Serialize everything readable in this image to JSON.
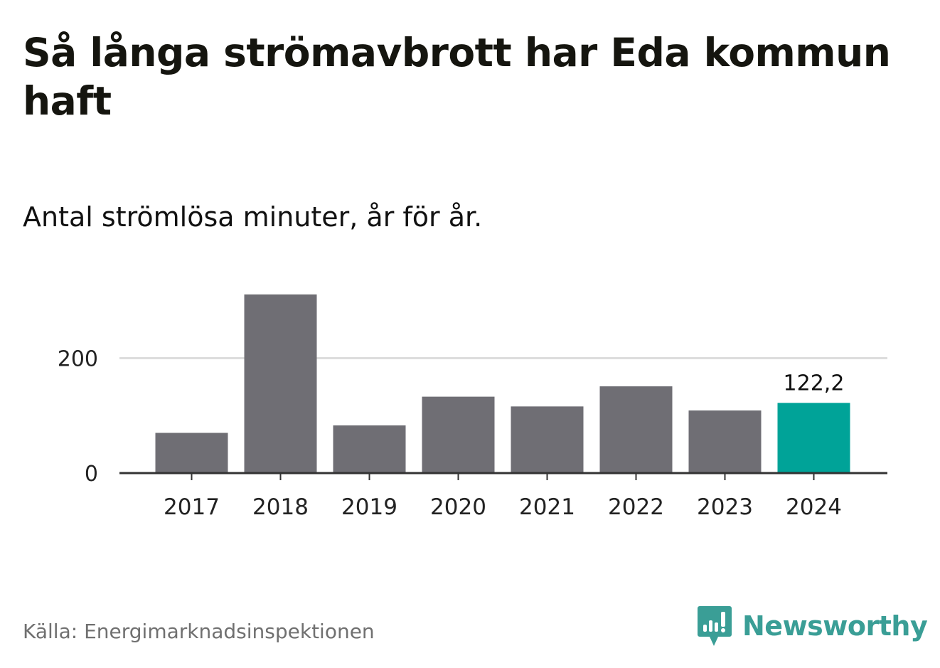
{
  "title": "Så långa strömavbrott har Eda kommun haft",
  "subtitle": "Antal strömlösa minuter, år för år.",
  "source": "Källa: Energimarknadsinspektionen",
  "brand": {
    "name": "Newsworthy",
    "icon": "newsworthy-logo-icon",
    "color": "#3a9e96"
  },
  "colors": {
    "bar": "#6f6e74",
    "highlight": "#00a398",
    "grid": "#dddddd",
    "axis": "#333333"
  },
  "chart_data": {
    "type": "bar",
    "title": "Så långa strömavbrott har Eda kommun haft",
    "subtitle": "Antal strömlösa minuter, år för år.",
    "xlabel": "",
    "ylabel": "",
    "categories": [
      "2017",
      "2018",
      "2019",
      "2020",
      "2021",
      "2022",
      "2023",
      "2024"
    ],
    "values": [
      70,
      311,
      83,
      133,
      116,
      151,
      109,
      122.2
    ],
    "highlight_index": 7,
    "data_labels": [
      {
        "index": 7,
        "text": "122,2"
      }
    ],
    "yticks": [
      0,
      200
    ],
    "ytick_labels": [
      "0",
      "200"
    ],
    "ylim": [
      0,
      330
    ],
    "grid": true
  }
}
